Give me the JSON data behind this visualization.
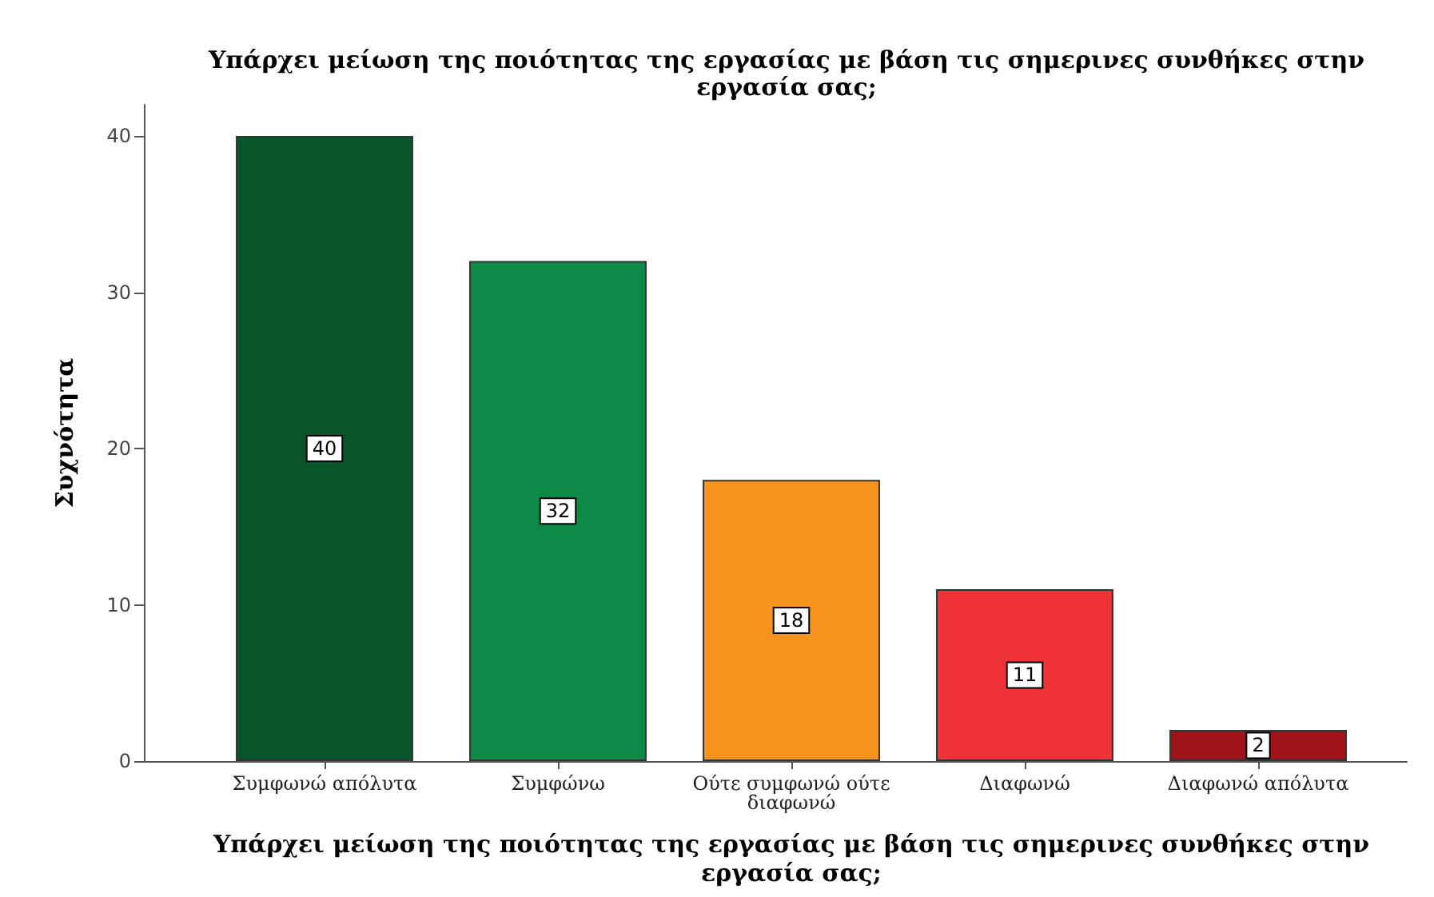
{
  "chart_data": {
    "type": "bar",
    "title": "Υπάρχει μείωση της ποιότητας της εργασίας με βάση τις σημερινες συνθήκες στην εργασία σας;",
    "xlabel": "Υπάρχει μείωση της ποιότητας της εργασίας με βάση τις σημερινες συνθήκες στην εργασία σας;",
    "ylabel": "Συχνότητα",
    "categories": [
      "Συμφωνώ απόλυτα",
      "Συμφώνω",
      "Ούτε συμφωνώ ούτε διαφωνώ",
      "Διαφωνώ",
      "Διαφωνώ απόλυτα"
    ],
    "values": [
      40,
      32,
      18,
      11,
      2
    ],
    "colors": [
      "#0b532b",
      "#0e8a47",
      "#f7941d",
      "#ee3237",
      "#a01419"
    ],
    "ylim": [
      0,
      42
    ],
    "yticks": [
      0,
      10,
      20,
      30,
      40
    ],
    "grid": false,
    "data_labels": true
  }
}
